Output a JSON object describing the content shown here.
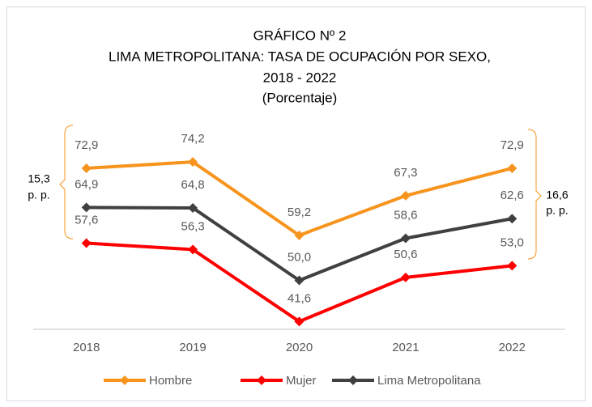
{
  "chart_data": {
    "type": "line",
    "title": "GRÁFICO Nº 2",
    "subtitle": [
      "LIMA METROPOLITANA: TASA DE OCUPACIÓN POR SEXO,",
      "2018 - 2022"
    ],
    "unit_label": "(Porcentaje)",
    "categories": [
      "2018",
      "2019",
      "2020",
      "2021",
      "2022"
    ],
    "ylim": [
      40,
      80
    ],
    "series": [
      {
        "name": "Hombre",
        "color": "#f7941d",
        "values": [
          72.9,
          74.2,
          59.2,
          67.3,
          72.9
        ],
        "value_labels": [
          "72,9",
          "74,2",
          "59,2",
          "67,3",
          "72,9"
        ]
      },
      {
        "name": "Mujer",
        "color": "#ff0000",
        "values": [
          57.6,
          56.3,
          41.6,
          50.6,
          53.0
        ],
        "value_labels": [
          "57,6",
          "56,3",
          "41,6",
          "50,6",
          "53,0"
        ]
      },
      {
        "name": "Lima Metropolitana",
        "color": "#404040",
        "values": [
          64.9,
          64.8,
          50.0,
          58.6,
          62.6
        ],
        "value_labels": [
          "64,9",
          "64,8",
          "50,0",
          "58,6",
          "62,6"
        ]
      }
    ],
    "annotations": [
      {
        "text": "15,3",
        "unit": "p. p."
      },
      {
        "text": "16,6",
        "unit": "p. p."
      }
    ],
    "legend": "bottom"
  }
}
